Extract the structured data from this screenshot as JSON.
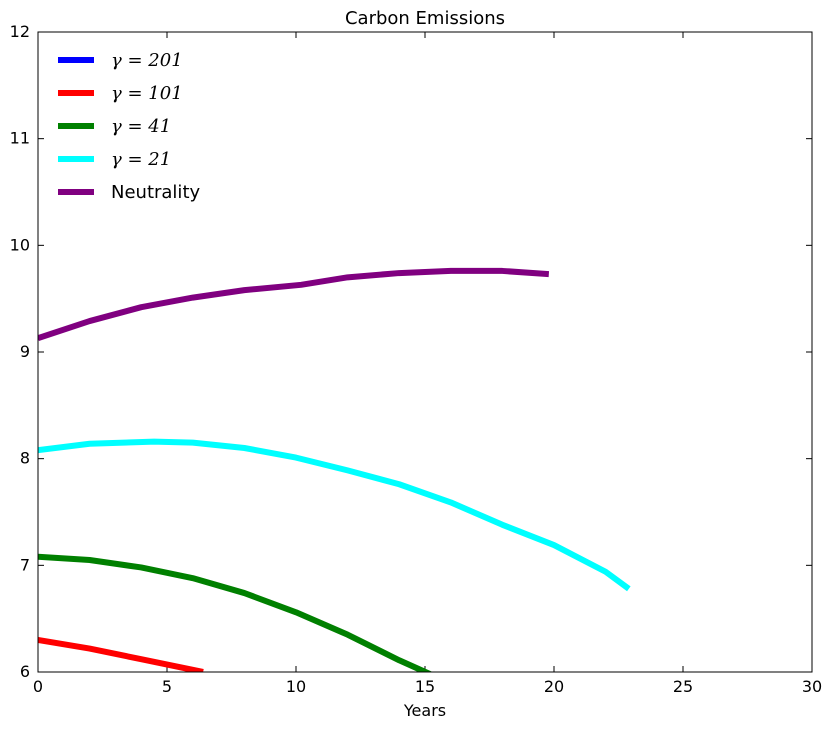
{
  "chart_data": {
    "type": "line",
    "title": "Carbon Emissions",
    "xlabel": "Years",
    "ylabel": "",
    "xlim": [
      0,
      30
    ],
    "ylim": [
      6,
      12
    ],
    "xticks": [
      0,
      5,
      10,
      15,
      20,
      25,
      30
    ],
    "yticks": [
      6,
      7,
      8,
      9,
      10,
      11,
      12
    ],
    "grid": false,
    "legend_position": "top-left",
    "series": [
      {
        "name": "γ = 201",
        "color": "#0000ff",
        "x": [],
        "y": []
      },
      {
        "name": "γ = 101",
        "color": "#ff0000",
        "x": [
          0,
          2,
          4,
          6,
          6.4
        ],
        "y": [
          6.3,
          6.22,
          6.12,
          6.02,
          6.0
        ]
      },
      {
        "name": "γ = 41",
        "color": "#008000",
        "x": [
          0,
          2,
          4,
          6,
          8,
          10,
          12,
          14,
          15.2
        ],
        "y": [
          7.08,
          7.05,
          6.98,
          6.88,
          6.74,
          6.56,
          6.35,
          6.11,
          5.98
        ]
      },
      {
        "name": "γ = 21",
        "color": "#00ffff",
        "x": [
          0,
          2,
          4.5,
          6,
          8,
          10,
          12,
          14,
          16,
          18,
          20,
          22,
          22.9
        ],
        "y": [
          8.08,
          8.14,
          8.16,
          8.15,
          8.1,
          8.01,
          7.89,
          7.76,
          7.59,
          7.38,
          7.19,
          6.94,
          6.78
        ]
      },
      {
        "name": "Neutrality",
        "color": "#800080",
        "x": [
          0,
          2,
          4,
          6,
          8,
          10.2,
          12,
          14,
          16,
          18,
          19.8
        ],
        "y": [
          9.13,
          9.29,
          9.42,
          9.51,
          9.58,
          9.63,
          9.7,
          9.74,
          9.76,
          9.76,
          9.73
        ]
      }
    ]
  }
}
